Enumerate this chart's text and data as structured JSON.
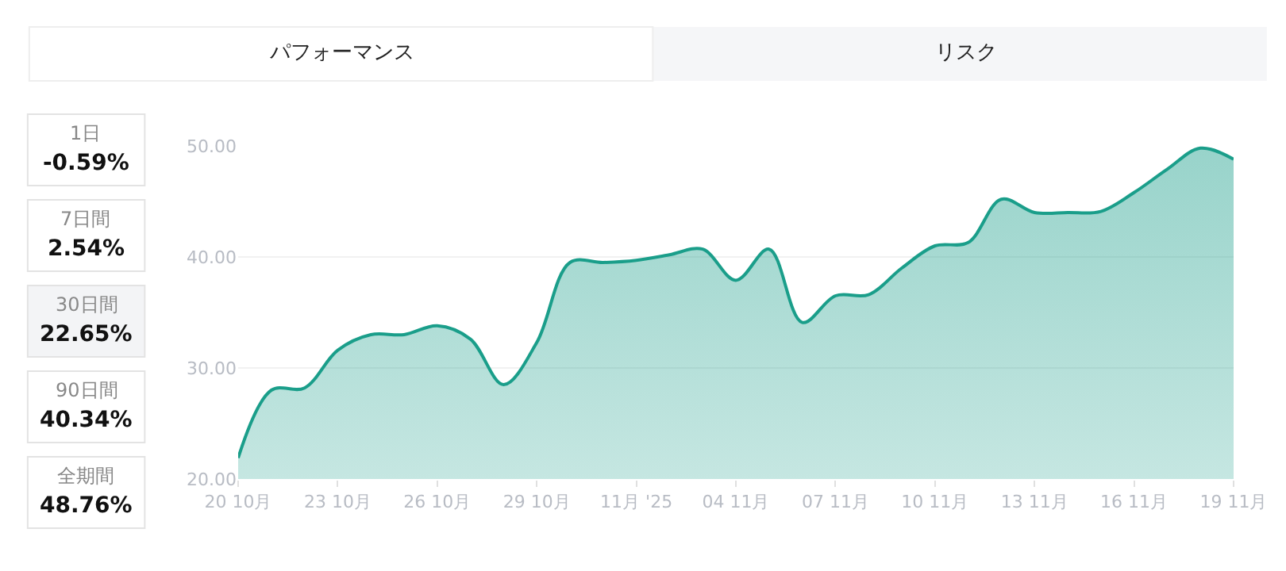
{
  "chart_data": {
    "type": "area",
    "x": [
      "2025-10-20",
      "2025-10-21",
      "2025-10-22",
      "2025-10-23",
      "2025-10-24",
      "2025-10-25",
      "2025-10-26",
      "2025-10-27",
      "2025-10-28",
      "2025-10-29",
      "2025-10-30",
      "2025-10-31",
      "2025-11-01",
      "2025-11-02",
      "2025-11-03",
      "2025-11-04",
      "2025-11-05",
      "2025-11-06",
      "2025-11-07",
      "2025-11-08",
      "2025-11-09",
      "2025-11-10",
      "2025-11-11",
      "2025-11-12",
      "2025-11-13",
      "2025-11-14",
      "2025-11-15",
      "2025-11-16",
      "2025-11-17",
      "2025-11-18",
      "2025-11-19"
    ],
    "series": [
      {
        "color": "#1a9e8a",
        "values": [
          21.9,
          28.0,
          28.2,
          31.6,
          33.0,
          33.0,
          33.8,
          32.6,
          28.5,
          32.3,
          39.5,
          39.5,
          39.7,
          40.2,
          40.7,
          37.9,
          40.7,
          34.1,
          36.5,
          36.6,
          39.0,
          41.0,
          41.3,
          45.2,
          44.0,
          44.0,
          44.1,
          45.8,
          47.9,
          49.8,
          48.8
        ]
      }
    ],
    "xlim": [
      "2025-10-20",
      "2025-11-19"
    ],
    "xticks": [
      {
        "value": "2025-10-20",
        "label": "20 10月"
      },
      {
        "value": "2025-10-23",
        "label": "23 10月"
      },
      {
        "value": "2025-10-26",
        "label": "26 10月"
      },
      {
        "value": "2025-10-29",
        "label": "29 10月"
      },
      {
        "value": "2025-11-01",
        "label": "11月 '25"
      },
      {
        "value": "2025-11-04",
        "label": "04 11月"
      },
      {
        "value": "2025-11-07",
        "label": "07 11月"
      },
      {
        "value": "2025-11-10",
        "label": "10 11月"
      },
      {
        "value": "2025-11-13",
        "label": "13 11月"
      },
      {
        "value": "2025-11-16",
        "label": "16 11月"
      },
      {
        "value": "2025-11-19",
        "label": "19 11月"
      }
    ],
    "ylim": [
      20,
      50
    ],
    "yticks": [
      {
        "value": 20,
        "label": "20.00"
      },
      {
        "value": 30,
        "label": "30.00"
      },
      {
        "value": 40,
        "label": "40.00"
      },
      {
        "value": 50,
        "label": "50.00"
      }
    ],
    "grid": "y",
    "legend": false,
    "marker": "none",
    "annotations": [
      "パフォーマンス",
      "リスク",
      "1日",
      "-0.59%",
      "7日間",
      "2.54%",
      "30日間",
      "22.65%",
      "90日間",
      "40.34%",
      "全期間",
      "48.76%"
    ]
  }
}
